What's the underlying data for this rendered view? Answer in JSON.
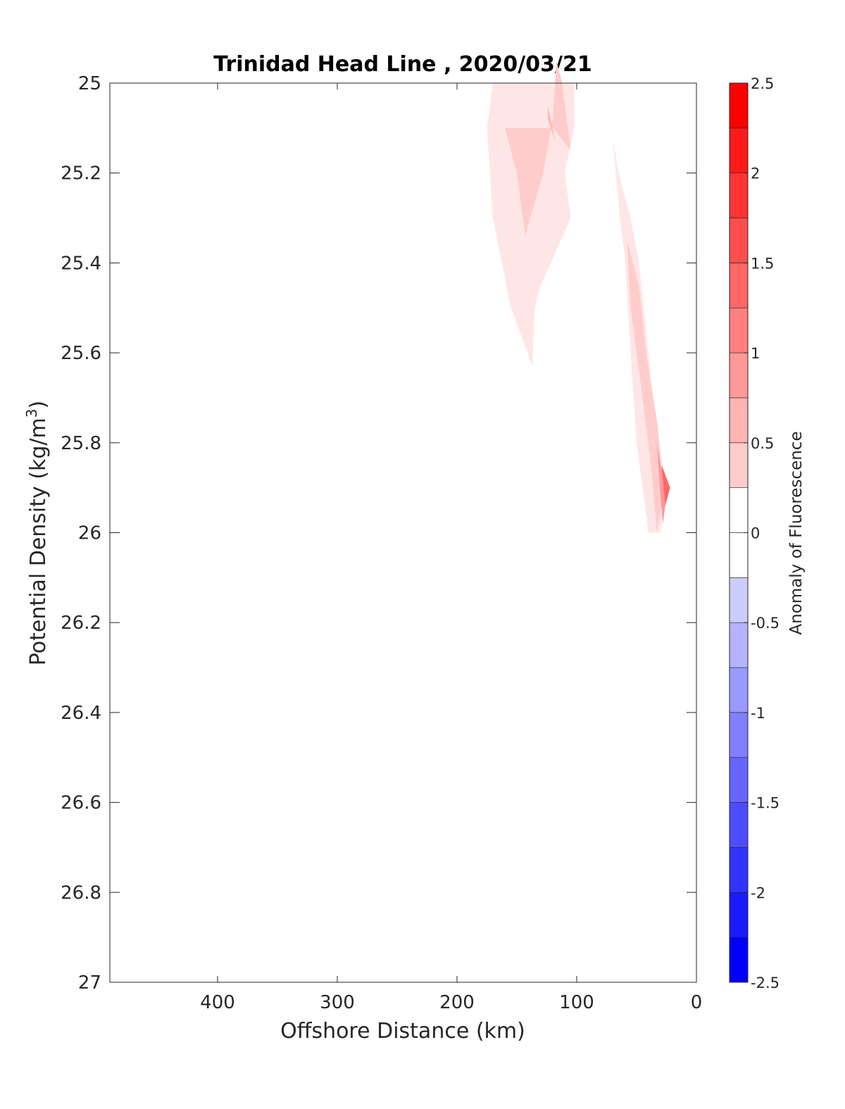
{
  "chart_data": {
    "type": "contour",
    "title": "Trinidad Head Line , 2020/03/21",
    "xlabel": "Offshore Distance (km)",
    "ylabel_main": "Potential Density (kg/m",
    "ylabel_sup": "3",
    "ylabel_close": ")",
    "xlim": [
      490,
      0
    ],
    "ylim": [
      27,
      25
    ],
    "x_reversed": true,
    "y_reversed": true,
    "grid": false,
    "x_ticks": [
      400,
      300,
      200,
      100,
      0
    ],
    "x_tick_labels": [
      "400",
      "300",
      "200",
      "100",
      "0"
    ],
    "y_ticks": [
      25,
      25.2,
      25.4,
      25.6,
      25.8,
      26,
      26.2,
      26.4,
      26.6,
      26.8,
      27
    ],
    "y_tick_labels": [
      "25",
      "25.2",
      "25.4",
      "25.6",
      "25.8",
      "26",
      "26.2",
      "26.4",
      "26.6",
      "26.8",
      "27"
    ],
    "colorbar": {
      "label": "Anomaly of Fluorescence",
      "range": [
        -2.5,
        2.5
      ],
      "step": 0.25,
      "tick_values": [
        2.5,
        2,
        1.5,
        1,
        0.5,
        0,
        -0.5,
        -1,
        -1.5,
        -2,
        -2.5
      ],
      "tick_labels": [
        "2.5",
        "2",
        "1.5",
        "1",
        "0.5",
        "0",
        "-0.5",
        "-1",
        "-1.5",
        "-2",
        "-2.5"
      ],
      "positive_color": "#ff0000",
      "negative_color": "#0000ff",
      "zero_band_color": "#ffffff"
    },
    "regions": [
      {
        "level": 0.25,
        "points": [
          [
            175,
            25.1
          ],
          [
            170,
            25.3
          ],
          [
            155,
            25.5
          ],
          [
            137,
            25.63
          ],
          [
            135,
            25.5
          ],
          [
            130,
            25.45
          ],
          [
            105,
            25.3
          ],
          [
            110,
            25.2
          ],
          [
            102,
            25.1
          ],
          [
            102,
            25.0
          ],
          [
            110,
            25.0
          ],
          [
            135,
            25.0
          ],
          [
            170,
            25.0
          ]
        ]
      },
      {
        "level": 0.5,
        "points": [
          [
            160,
            25.1
          ],
          [
            150,
            25.2
          ],
          [
            143,
            25.34
          ],
          [
            128,
            25.2
          ],
          [
            120,
            25.08
          ],
          [
            117,
            24.95
          ],
          [
            112,
            25.0
          ],
          [
            105,
            25.15
          ],
          [
            120,
            25.1
          ],
          [
            130,
            25.1
          ]
        ]
      },
      {
        "level": 0.75,
        "points": [
          [
            124,
            25.05
          ],
          [
            118,
            25.13
          ],
          [
            124,
            25.08
          ]
        ]
      },
      {
        "level": 0.25,
        "points": [
          [
            70,
            25.12
          ],
          [
            64,
            25.3
          ],
          [
            60,
            25.38
          ],
          [
            55,
            25.6
          ],
          [
            50,
            25.8
          ],
          [
            40,
            26.0
          ],
          [
            30,
            26.0
          ],
          [
            25,
            25.9
          ],
          [
            35,
            25.75
          ],
          [
            40,
            25.6
          ],
          [
            48,
            25.4
          ],
          [
            55,
            25.3
          ],
          [
            65,
            25.2
          ]
        ]
      },
      {
        "level": 0.5,
        "points": [
          [
            58,
            25.35
          ],
          [
            55,
            25.5
          ],
          [
            45,
            25.7
          ],
          [
            38,
            25.85
          ],
          [
            33,
            26.0
          ],
          [
            27,
            25.9
          ],
          [
            33,
            25.75
          ],
          [
            42,
            25.6
          ],
          [
            48,
            25.45
          ]
        ]
      },
      {
        "level": 1.0,
        "points": [
          [
            33,
            25.8
          ],
          [
            30,
            25.92
          ],
          [
            28,
            25.98
          ],
          [
            24,
            25.9
          ],
          [
            30,
            25.85
          ]
        ]
      },
      {
        "level": 1.5,
        "points": [
          [
            29,
            25.85
          ],
          [
            26,
            25.94
          ],
          [
            22,
            25.9
          ]
        ]
      }
    ]
  }
}
